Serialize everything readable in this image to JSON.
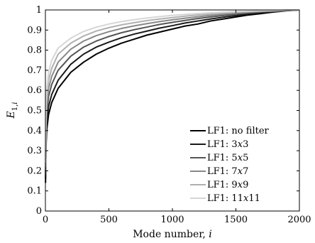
{
  "chart_data": {
    "type": "line",
    "title": "",
    "xlabel": "Mode number, i",
    "ylabel": "E1,i",
    "xlim": [
      0,
      2000
    ],
    "ylim": [
      0,
      1
    ],
    "xticks": [
      0,
      500,
      1000,
      1500,
      2000
    ],
    "yticks": [
      0,
      0.1,
      0.2,
      0.3,
      0.4,
      0.5,
      0.6,
      0.7,
      0.8,
      0.9,
      1
    ],
    "grid": false,
    "legend_position": "bottom-right",
    "x": [
      1,
      5,
      10,
      25,
      50,
      100,
      200,
      300,
      400,
      500,
      600,
      700,
      800,
      900,
      1000,
      1100,
      1200,
      1300,
      1400,
      1500,
      1600,
      1700,
      1800,
      1900,
      2000
    ],
    "series": [
      {
        "name": "LF1: no filter",
        "color": "#000000",
        "values": [
          0.14,
          0.32,
          0.4,
          0.48,
          0.54,
          0.61,
          0.69,
          0.74,
          0.78,
          0.81,
          0.835,
          0.855,
          0.875,
          0.89,
          0.905,
          0.92,
          0.93,
          0.945,
          0.955,
          0.965,
          0.975,
          0.982,
          0.99,
          0.996,
          1.0
        ]
      },
      {
        "name": "LF1: 3x3",
        "color": "#1a1a1a",
        "values": [
          0.16,
          0.36,
          0.44,
          0.52,
          0.58,
          0.65,
          0.73,
          0.78,
          0.815,
          0.84,
          0.862,
          0.88,
          0.895,
          0.91,
          0.922,
          0.935,
          0.945,
          0.955,
          0.964,
          0.972,
          0.98,
          0.987,
          0.992,
          0.997,
          1.0
        ]
      },
      {
        "name": "LF1: 5x5",
        "color": "#555555",
        "values": [
          0.18,
          0.4,
          0.48,
          0.57,
          0.63,
          0.7,
          0.77,
          0.815,
          0.845,
          0.868,
          0.887,
          0.902,
          0.915,
          0.928,
          0.938,
          0.948,
          0.957,
          0.965,
          0.972,
          0.979,
          0.985,
          0.99,
          0.994,
          0.998,
          1.0
        ]
      },
      {
        "name": "LF1: 7x7",
        "color": "#888888",
        "values": [
          0.2,
          0.44,
          0.52,
          0.61,
          0.67,
          0.74,
          0.805,
          0.845,
          0.872,
          0.892,
          0.908,
          0.921,
          0.932,
          0.942,
          0.951,
          0.959,
          0.966,
          0.973,
          0.979,
          0.984,
          0.989,
          0.993,
          0.996,
          0.999,
          1.0
        ]
      },
      {
        "name": "LF1: 9x9",
        "color": "#b0b0b0",
        "values": [
          0.22,
          0.48,
          0.56,
          0.65,
          0.71,
          0.78,
          0.835,
          0.87,
          0.895,
          0.912,
          0.926,
          0.937,
          0.947,
          0.955,
          0.962,
          0.969,
          0.975,
          0.98,
          0.985,
          0.989,
          0.992,
          0.995,
          0.997,
          0.999,
          1.0
        ]
      },
      {
        "name": "LF1: 11x11",
        "color": "#d6d6d6",
        "values": [
          0.24,
          0.52,
          0.6,
          0.69,
          0.75,
          0.81,
          0.86,
          0.893,
          0.914,
          0.93,
          0.942,
          0.952,
          0.96,
          0.967,
          0.973,
          0.978,
          0.982,
          0.986,
          0.989,
          0.992,
          0.994,
          0.996,
          0.998,
          0.999,
          1.0
        ]
      }
    ]
  }
}
